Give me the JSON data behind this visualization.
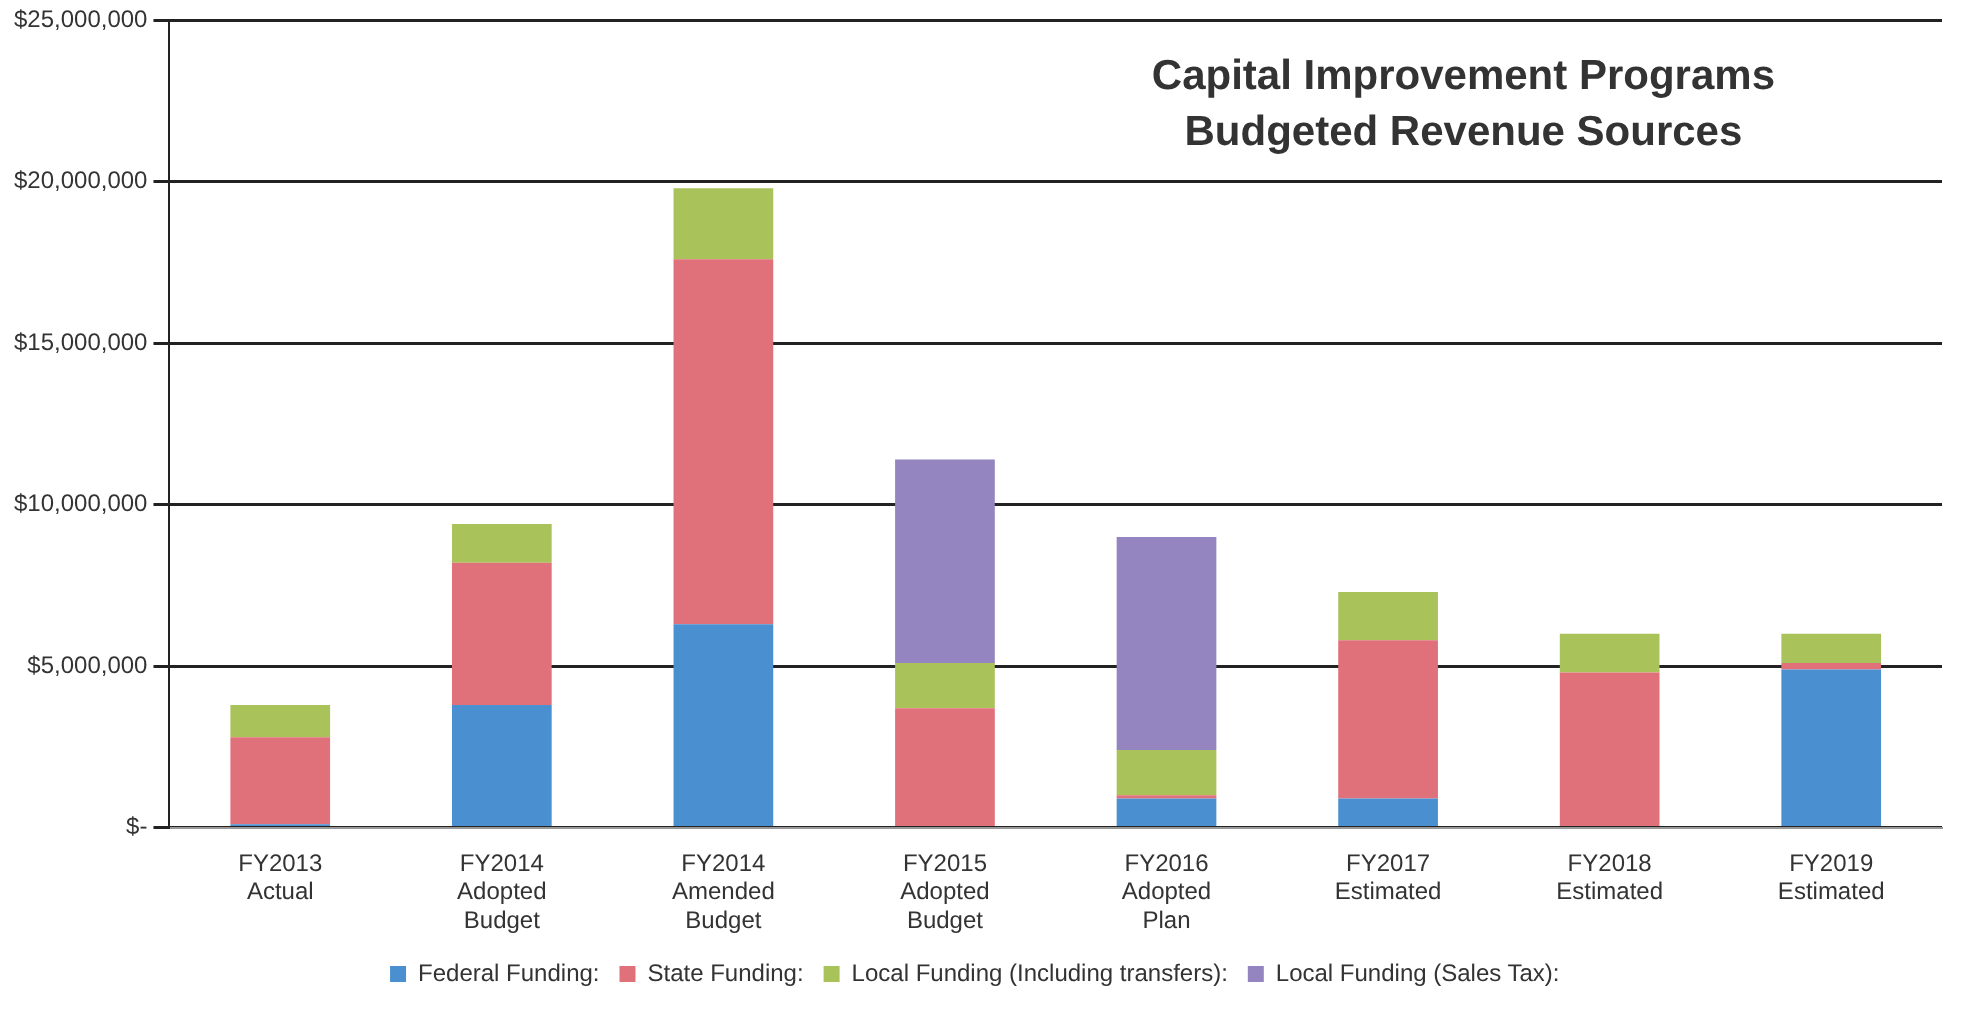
{
  "chart_data": {
    "type": "bar",
    "title": "Capital Improvement Programs\nBudgeted Revenue Sources",
    "stacked": true,
    "categories": [
      "FY2013 Actual",
      "FY2014 Adopted Budget",
      "FY2014 Amended Budget",
      "FY2015 Adopted Budget",
      "FY2016 Adopted Plan",
      "FY2017 Estimated",
      "FY2018 Estimated",
      "FY2019 Estimated"
    ],
    "series": [
      {
        "name": "Federal Funding:",
        "color": "#4a8fd0",
        "values": [
          100000,
          3800000,
          6300000,
          null,
          900000,
          900000,
          null,
          4900000
        ]
      },
      {
        "name": "State Funding:",
        "color": "#e0707a",
        "values": [
          2700000,
          4400000,
          11300000,
          3700000,
          100000,
          4900000,
          4800000,
          200000
        ]
      },
      {
        "name": "Local Funding (Including transfers):",
        "color": "#a9c35a",
        "values": [
          1000000,
          1200000,
          2200000,
          1400000,
          1400000,
          1500000,
          1200000,
          900000
        ]
      },
      {
        "name": "Local Funding (Sales Tax):",
        "color": "#9485c0",
        "values": [
          null,
          null,
          null,
          6300000,
          6600000,
          null,
          null,
          null
        ]
      }
    ],
    "ylim": [
      0,
      25000000
    ],
    "yticks": [
      {
        "value": 0,
        "label": "$-"
      },
      {
        "value": 5000000,
        "label": "$5,000,000"
      },
      {
        "value": 10000000,
        "label": "$10,000,000"
      },
      {
        "value": 15000000,
        "label": "$15,000,000"
      },
      {
        "value": 20000000,
        "label": "$20,000,000"
      },
      {
        "value": 25000000,
        "label": "$25,000,000"
      }
    ],
    "grid": "y",
    "legend": "bottom"
  }
}
